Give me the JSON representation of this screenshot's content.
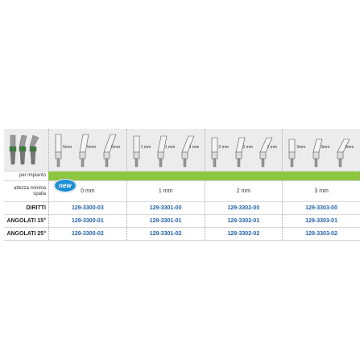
{
  "header": {
    "cells": [
      [
        "5mm",
        "5mm",
        "5mm"
      ],
      [
        "1 mm",
        "1 mm",
        "1 mm"
      ],
      [
        "2 mm",
        "2 mm",
        "2 mm"
      ],
      [
        "3mm",
        "3mm",
        "3mm"
      ]
    ]
  },
  "table": {
    "implant_label": "per impianto",
    "height_label": "altezza minima spalla",
    "badge": "new",
    "heights": [
      "0 mm",
      "1 mm",
      "2 mm",
      "3 mm"
    ],
    "rows": [
      [
        "DIRITTI",
        "129-3300-03",
        "129-3301-00",
        "129-3302-00",
        "129-3303-00"
      ],
      [
        "ANGOLATI 15°",
        "129-3300-01",
        "129-3301-01",
        "129-3302-01",
        "129-3303-01"
      ],
      [
        "ANGOLATI 25°",
        "129-3300-02",
        "129-3301-02",
        "129-3302-02",
        "129-3303-02"
      ]
    ]
  }
}
